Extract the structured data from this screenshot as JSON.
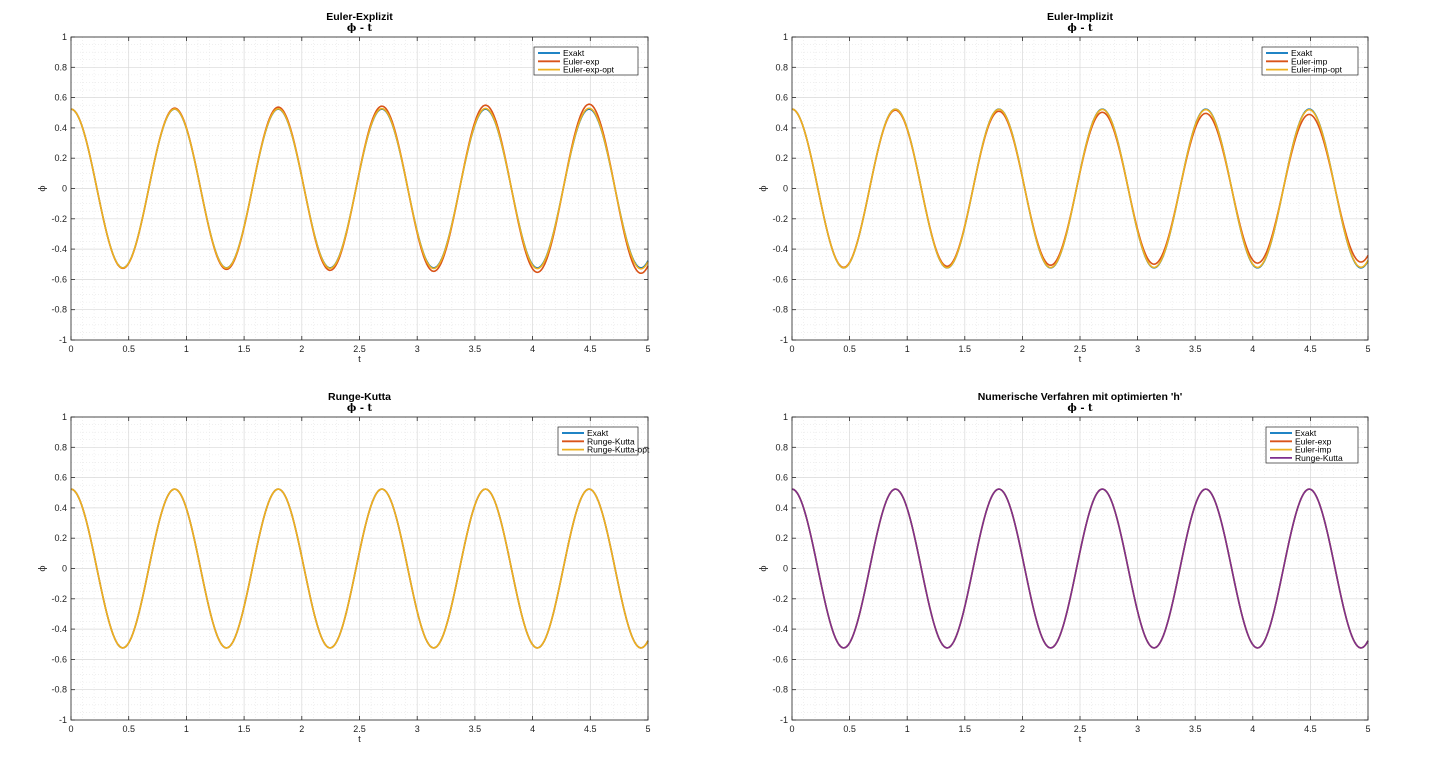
{
  "colors": {
    "exakt": "#0072BD",
    "method1": "#D95319",
    "method2": "#EDB120",
    "method3": "#7E2F8E",
    "grid": "#d8d8d8",
    "minor_grid": "#e6e6e6",
    "axes": "#262626"
  },
  "chart_data": [
    {
      "type": "line",
      "title": "Euler-Explizit",
      "subtitle": "ϕ - t",
      "xlabel": "t",
      "ylabel": "ϕ",
      "xlim": [
        0,
        5
      ],
      "ylim": [
        -1,
        1
      ],
      "xticks": [
        0,
        0.5,
        1,
        1.5,
        2,
        2.5,
        3,
        3.5,
        4,
        4.5,
        5
      ],
      "xtick_labels": [
        "0",
        "0.5",
        "1",
        "1.5",
        "2",
        "2.5",
        "3",
        "3.5",
        "4",
        "4.5",
        "5"
      ],
      "yticks": [
        -1,
        -0.8,
        -0.6,
        -0.4,
        -0.2,
        0,
        0.2,
        0.4,
        0.6,
        0.8,
        1
      ],
      "ytick_labels": [
        "-1",
        "-0.8",
        "-0.6",
        "-0.4",
        "-0.2",
        "0",
        "0.2",
        "0.4",
        "0.6",
        "0.8",
        "1"
      ],
      "grid": true,
      "minor_grid": true,
      "legend": "top-right",
      "model": "phi(t) = amplitude(t) * cos(2*pi*t/period)",
      "series": [
        {
          "name": "Exakt",
          "color_key": "exakt",
          "amplitude_start": 0.524,
          "amplitude_end": 0.524,
          "period": 0.898
        },
        {
          "name": "Euler-exp",
          "color_key": "method1",
          "amplitude_start": 0.524,
          "amplitude_end": 0.56,
          "period": 0.898
        },
        {
          "name": "Euler-exp-opt",
          "color_key": "method2",
          "amplitude_start": 0.524,
          "amplitude_end": 0.53,
          "period": 0.898
        }
      ]
    },
    {
      "type": "line",
      "title": "Euler-Implizit",
      "subtitle": "ϕ - t",
      "xlabel": "t",
      "ylabel": "ϕ",
      "xlim": [
        0,
        5
      ],
      "ylim": [
        -1,
        1
      ],
      "xticks": [
        0,
        0.5,
        1,
        1.5,
        2,
        2.5,
        3,
        3.5,
        4,
        4.5,
        5
      ],
      "xtick_labels": [
        "0",
        "0.5",
        "1",
        "1.5",
        "2",
        "2.5",
        "3",
        "3.5",
        "4",
        "4.5",
        "5"
      ],
      "yticks": [
        -1,
        -0.8,
        -0.6,
        -0.4,
        -0.2,
        0,
        0.2,
        0.4,
        0.6,
        0.8,
        1
      ],
      "ytick_labels": [
        "-1",
        "-0.8",
        "-0.6",
        "-0.4",
        "-0.2",
        "0",
        "0.2",
        "0.4",
        "0.6",
        "0.8",
        "1"
      ],
      "grid": true,
      "minor_grid": true,
      "legend": "top-right",
      "model": "phi(t) = amplitude(t) * cos(2*pi*t/period)",
      "series": [
        {
          "name": "Exakt",
          "color_key": "exakt",
          "amplitude_start": 0.524,
          "amplitude_end": 0.524,
          "period": 0.898
        },
        {
          "name": "Euler-imp",
          "color_key": "method1",
          "amplitude_start": 0.524,
          "amplitude_end": 0.485,
          "period": 0.898
        },
        {
          "name": "Euler-imp-opt",
          "color_key": "method2",
          "amplitude_start": 0.524,
          "amplitude_end": 0.52,
          "period": 0.898
        }
      ]
    },
    {
      "type": "line",
      "title": "Runge-Kutta",
      "subtitle": "ϕ - t",
      "xlabel": "t",
      "ylabel": "ϕ",
      "xlim": [
        0,
        5
      ],
      "ylim": [
        -1,
        1
      ],
      "xticks": [
        0,
        0.5,
        1,
        1.5,
        2,
        2.5,
        3,
        3.5,
        4,
        4.5,
        5
      ],
      "xtick_labels": [
        "0",
        "0.5",
        "1",
        "1.5",
        "2",
        "2.5",
        "3",
        "3.5",
        "4",
        "4.5",
        "5"
      ],
      "yticks": [
        -1,
        -0.8,
        -0.6,
        -0.4,
        -0.2,
        0,
        0.2,
        0.4,
        0.6,
        0.8,
        1
      ],
      "ytick_labels": [
        "-1",
        "-0.8",
        "-0.6",
        "-0.4",
        "-0.2",
        "0",
        "0.2",
        "0.4",
        "0.6",
        "0.8",
        "1"
      ],
      "grid": true,
      "minor_grid": true,
      "legend": "top-right",
      "model": "phi(t) = amplitude(t) * cos(2*pi*t/period)",
      "series": [
        {
          "name": "Exakt",
          "color_key": "exakt",
          "amplitude_start": 0.524,
          "amplitude_end": 0.524,
          "period": 0.898
        },
        {
          "name": "Runge-Kutta",
          "color_key": "method1",
          "amplitude_start": 0.524,
          "amplitude_end": 0.524,
          "period": 0.898
        },
        {
          "name": "Runge-Kutta-opt",
          "color_key": "method2",
          "amplitude_start": 0.524,
          "amplitude_end": 0.524,
          "period": 0.898
        }
      ]
    },
    {
      "type": "line",
      "title": "Numerische Verfahren mit optimierten 'h'",
      "subtitle": "ϕ - t",
      "xlabel": "t",
      "ylabel": "ϕ",
      "xlim": [
        0,
        5
      ],
      "ylim": [
        -1,
        1
      ],
      "xticks": [
        0,
        0.5,
        1,
        1.5,
        2,
        2.5,
        3,
        3.5,
        4,
        4.5,
        5
      ],
      "xtick_labels": [
        "0",
        "0.5",
        "1",
        "1.5",
        "2",
        "2.5",
        "3",
        "3.5",
        "4",
        "4.5",
        "5"
      ],
      "yticks": [
        -1,
        -0.8,
        -0.6,
        -0.4,
        -0.2,
        0,
        0.2,
        0.4,
        0.6,
        0.8,
        1
      ],
      "ytick_labels": [
        "-1",
        "-0.8",
        "-0.6",
        "-0.4",
        "-0.2",
        "0",
        "0.2",
        "0.4",
        "0.6",
        "0.8",
        "1"
      ],
      "grid": true,
      "minor_grid": true,
      "legend": "top-right",
      "model": "phi(t) = amplitude(t) * cos(2*pi*t/period)",
      "series": [
        {
          "name": "Exakt",
          "color_key": "exakt",
          "amplitude_start": 0.524,
          "amplitude_end": 0.524,
          "period": 0.898
        },
        {
          "name": "Euler-exp",
          "color_key": "method1",
          "amplitude_start": 0.524,
          "amplitude_end": 0.524,
          "period": 0.898
        },
        {
          "name": "Euler-imp",
          "color_key": "method2",
          "amplitude_start": 0.524,
          "amplitude_end": 0.524,
          "period": 0.898
        },
        {
          "name": "Runge-Kutta",
          "color_key": "method3",
          "amplitude_start": 0.524,
          "amplitude_end": 0.524,
          "period": 0.898
        }
      ]
    }
  ]
}
